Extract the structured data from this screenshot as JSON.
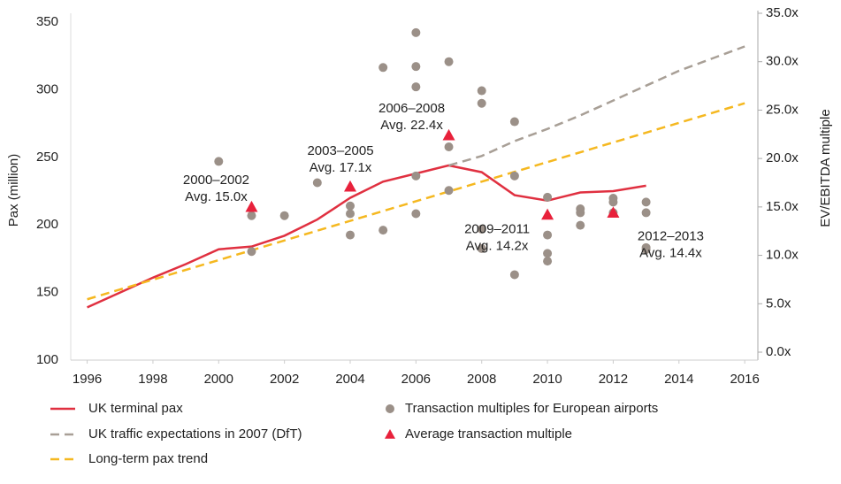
{
  "chart_data": {
    "type": "line",
    "y_label": "Pax (million)",
    "y2_label": "EV/EBITDA multiple",
    "xlim": [
      1995.5,
      2016.4
    ],
    "xticks": [
      1996,
      1998,
      2000,
      2002,
      2004,
      2006,
      2008,
      2010,
      2012,
      2014,
      2016
    ],
    "ylim": [
      100,
      350
    ],
    "yticks": [
      100,
      150,
      200,
      250,
      300,
      350
    ],
    "y2lim": [
      0,
      35
    ],
    "y2ticks": [
      {
        "value": 0,
        "label": "0.0x"
      },
      {
        "value": 5,
        "label": "5.0x"
      },
      {
        "value": 10,
        "label": "10.0x"
      },
      {
        "value": 15,
        "label": "15.0x"
      },
      {
        "value": 20,
        "label": "20.0x"
      },
      {
        "value": 25,
        "label": "25.0x"
      },
      {
        "value": 30,
        "label": "30.0x"
      },
      {
        "value": 35,
        "label": "35.0x"
      }
    ],
    "series": [
      {
        "name": "UK terminal pax",
        "type": "line",
        "color": "#e03040",
        "x": [
          1996,
          1997,
          1998,
          1999,
          2000,
          2001,
          2002,
          2003,
          2004,
          2005,
          2006,
          2007,
          2008,
          2009,
          2010,
          2011,
          2012,
          2013
        ],
        "values": [
          139,
          150,
          161,
          171,
          182,
          184,
          192,
          204,
          220,
          232,
          238,
          244,
          239,
          222,
          218,
          224,
          225,
          229
        ]
      },
      {
        "name": "UK traffic expectations in 2007 (DfT)",
        "type": "line",
        "dashed": true,
        "color": "#a89f96",
        "x": [
          2007,
          2008,
          2009,
          2010,
          2011,
          2012,
          2013,
          2014,
          2015,
          2016
        ],
        "values": [
          244,
          251,
          262,
          271,
          281,
          292,
          303,
          314,
          323,
          332
        ]
      },
      {
        "name": "Long-term pax trend",
        "type": "line",
        "dashed": true,
        "color": "#f5b820",
        "x": [
          1996,
          2016
        ],
        "values": [
          145,
          290
        ]
      },
      {
        "name": "Transaction multiples for European airports",
        "type": "scatter",
        "axis": "y2",
        "color": "#9b9088",
        "x": [
          2000,
          2001,
          2001,
          2002,
          2003,
          2004,
          2004,
          2004,
          2005,
          2005,
          2006,
          2006,
          2006,
          2006,
          2006,
          2007,
          2007,
          2007,
          2008,
          2008,
          2008,
          2008,
          2009,
          2009,
          2009,
          2010,
          2010,
          2010,
          2010,
          2011,
          2011,
          2011,
          2012,
          2012,
          2012,
          2013,
          2013,
          2013,
          2013
        ],
        "values": [
          19.7,
          14.1,
          10.4,
          14.1,
          17.5,
          15.1,
          14.3,
          12.1,
          29.4,
          12.6,
          33.0,
          29.5,
          27.4,
          18.2,
          14.3,
          30.0,
          21.2,
          16.7,
          27.0,
          25.7,
          12.7,
          10.7,
          23.8,
          18.2,
          8.0,
          16.0,
          12.1,
          10.2,
          9.4,
          14.8,
          14.4,
          13.1,
          15.9,
          15.5,
          14.4,
          15.5,
          14.4,
          10.8,
          10.6
        ]
      },
      {
        "name": "Average transaction multiple",
        "type": "triangle",
        "axis": "y2",
        "color": "#e8213b",
        "x": [
          2001,
          2004,
          2007,
          2010,
          2012
        ],
        "values": [
          15.0,
          17.1,
          22.4,
          14.2,
          14.4
        ],
        "periods": [
          "2000–2002",
          "2003–2005",
          "2006–2008",
          "2009–2011",
          "2012–2013"
        ],
        "value_labels": [
          "Avg. 15.0x",
          "Avg. 17.1x",
          "Avg. 22.4x",
          "Avg. 14.2x",
          "Avg. 14.4x"
        ]
      }
    ]
  }
}
